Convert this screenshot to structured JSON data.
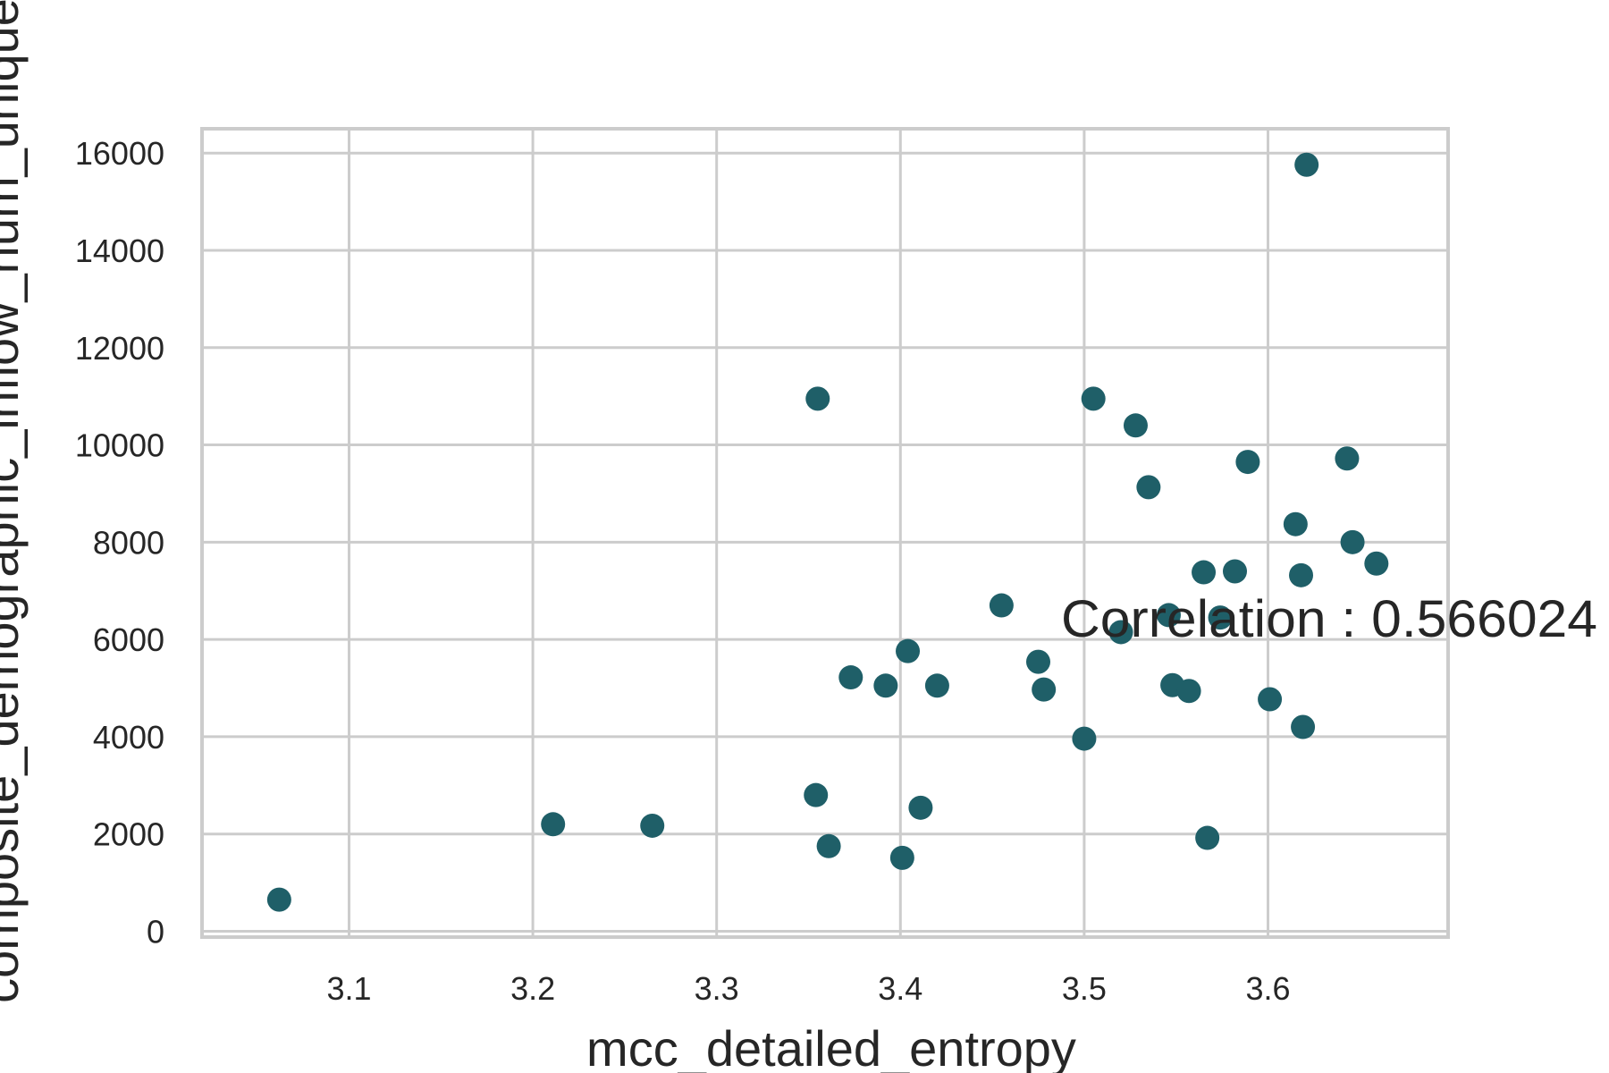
{
  "chart_data": {
    "type": "scatter",
    "title": "",
    "xlabel": "mcc_detailed_entropy",
    "ylabel": "composite_demographic_inflow_num_unique",
    "xlim": [
      3.02,
      3.698
    ],
    "ylim": [
      -120,
      16500
    ],
    "x_ticks": [
      3.1,
      3.2,
      3.3,
      3.4,
      3.5,
      3.6
    ],
    "x_tick_labels": [
      "3.1",
      "3.2",
      "3.3",
      "3.4",
      "3.5",
      "3.6"
    ],
    "y_ticks": [
      0,
      2000,
      4000,
      6000,
      8000,
      10000,
      12000,
      14000,
      16000
    ],
    "y_tick_labels": [
      "0",
      "2000",
      "4000",
      "6000",
      "8000",
      "10000",
      "12000",
      "14000",
      "16000"
    ],
    "grid": true,
    "marker_color": "#1f5f68",
    "annotation": "Correlation : 0.566024",
    "points": [
      {
        "x": 3.062,
        "y": 650
      },
      {
        "x": 3.211,
        "y": 2200
      },
      {
        "x": 3.265,
        "y": 2170
      },
      {
        "x": 3.354,
        "y": 2800
      },
      {
        "x": 3.355,
        "y": 10950
      },
      {
        "x": 3.361,
        "y": 1750
      },
      {
        "x": 3.373,
        "y": 5220
      },
      {
        "x": 3.392,
        "y": 5050
      },
      {
        "x": 3.401,
        "y": 1510
      },
      {
        "x": 3.404,
        "y": 5760
      },
      {
        "x": 3.411,
        "y": 2540
      },
      {
        "x": 3.42,
        "y": 5050
      },
      {
        "x": 3.455,
        "y": 6700
      },
      {
        "x": 3.475,
        "y": 5540
      },
      {
        "x": 3.478,
        "y": 4970
      },
      {
        "x": 3.5,
        "y": 3960
      },
      {
        "x": 3.505,
        "y": 10950
      },
      {
        "x": 3.52,
        "y": 6150
      },
      {
        "x": 3.528,
        "y": 10400
      },
      {
        "x": 3.535,
        "y": 9130
      },
      {
        "x": 3.546,
        "y": 6500
      },
      {
        "x": 3.548,
        "y": 5060
      },
      {
        "x": 3.557,
        "y": 4940
      },
      {
        "x": 3.565,
        "y": 7380
      },
      {
        "x": 3.567,
        "y": 1920
      },
      {
        "x": 3.574,
        "y": 6450
      },
      {
        "x": 3.582,
        "y": 7400
      },
      {
        "x": 3.589,
        "y": 9650
      },
      {
        "x": 3.601,
        "y": 4770
      },
      {
        "x": 3.615,
        "y": 8370
      },
      {
        "x": 3.618,
        "y": 7320
      },
      {
        "x": 3.619,
        "y": 4200
      },
      {
        "x": 3.621,
        "y": 15760
      },
      {
        "x": 3.643,
        "y": 9720
      },
      {
        "x": 3.646,
        "y": 8000
      },
      {
        "x": 3.659,
        "y": 7560
      }
    ]
  }
}
